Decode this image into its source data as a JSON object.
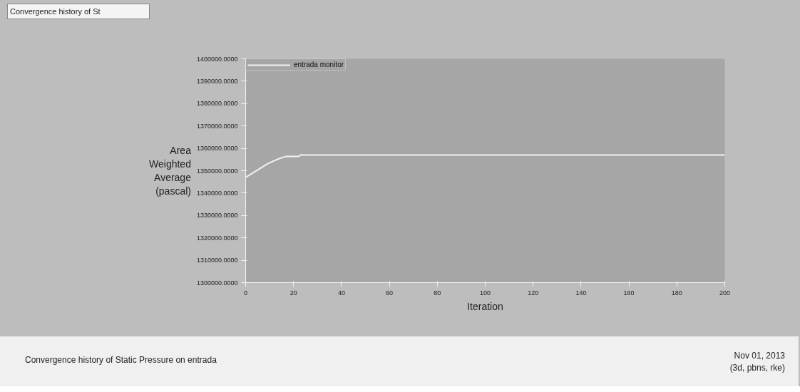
{
  "chart_data": {
    "type": "line",
    "xlabel": "Iteration",
    "ylabel": "Area Weighted Average (pascal)",
    "annotations": [
      "Convergence history of St",
      "Convergence history of Static Pressure on entrada",
      "Nov 01, 2013",
      "(3d, pbns, rke)"
    ],
    "series": [
      {
        "name": "entrada monitor",
        "color": "#f2f2f2",
        "x": [
          0,
          3,
          6,
          9,
          12,
          14,
          17,
          22,
          23,
          60,
          100,
          150,
          200
        ],
        "values": [
          1347000,
          1349000,
          1351000,
          1353000,
          1354500,
          1355400,
          1356400,
          1356400,
          1357000,
          1357000,
          1357000,
          1357000,
          1357000
        ]
      }
    ],
    "xlim": [
      0,
      200
    ],
    "xticks": [
      0,
      20,
      40,
      60,
      80,
      100,
      120,
      140,
      160,
      180,
      200
    ],
    "ylim": [
      1300000,
      1400000
    ],
    "yticks": [
      {
        "value": 1300000,
        "label": "1300000.0000"
      },
      {
        "value": 1310000,
        "label": "1310000.0000"
      },
      {
        "value": 1320000,
        "label": "1320000.0000"
      },
      {
        "value": 1330000,
        "label": "1330000.0000"
      },
      {
        "value": 1340000,
        "label": "1340000.0000"
      },
      {
        "value": 1350000,
        "label": "1350000.0000"
      },
      {
        "value": 1360000,
        "label": "1360000.0000"
      },
      {
        "value": 1370000,
        "label": "1370000.0000"
      },
      {
        "value": 1380000,
        "label": "1380000.0000"
      },
      {
        "value": 1390000,
        "label": "1390000.0000"
      },
      {
        "value": 1400000,
        "label": "1400000.0000"
      }
    ],
    "grid": false,
    "legend": "top left",
    "marker": "none",
    "line_style": "solid"
  }
}
